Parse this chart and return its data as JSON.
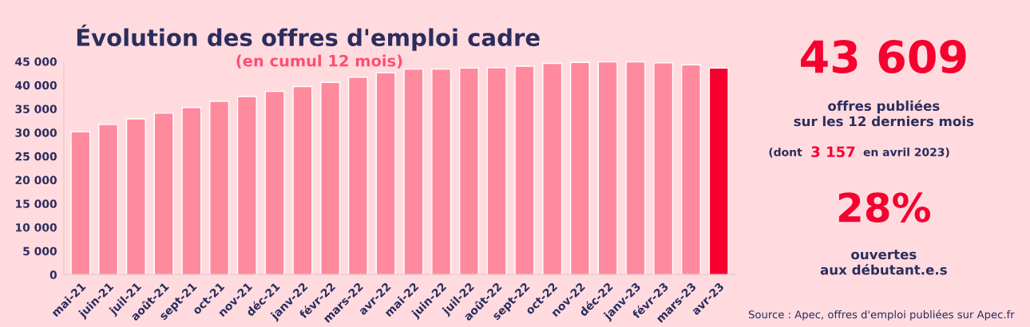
{
  "chart_data": {
    "type": "bar",
    "title": "Évolution des offres d'emploi cadre",
    "subtitle": "(en cumul 12 mois)",
    "categories": [
      "mai-21",
      "juin-21",
      "juil-21",
      "août-21",
      "sept-21",
      "oct-21",
      "nov-21",
      "déc-21",
      "janv-22",
      "févr-22",
      "mars-22",
      "avr-22",
      "mai-22",
      "juin-22",
      "juil-22",
      "août-22",
      "sept-22",
      "oct-22",
      "nov-22",
      "déc-22",
      "janv-23",
      "févr-23",
      "mars-23",
      "avr-23"
    ],
    "values": [
      30200,
      31700,
      32900,
      34100,
      35300,
      36600,
      37600,
      38700,
      39700,
      40600,
      41700,
      42600,
      43400,
      43400,
      43600,
      43700,
      44000,
      44600,
      44800,
      44900,
      44900,
      44700,
      44300,
      43609
    ],
    "colors": [
      "#ff8a9e",
      "#ff8a9e",
      "#ff8a9e",
      "#ff8a9e",
      "#ff8a9e",
      "#ff8a9e",
      "#ff8a9e",
      "#ff8a9e",
      "#ff8a9e",
      "#ff8a9e",
      "#ff8a9e",
      "#ff8a9e",
      "#ff8a9e",
      "#ff8a9e",
      "#ff8a9e",
      "#ff8a9e",
      "#ff8a9e",
      "#ff8a9e",
      "#ff8a9e",
      "#ff8a9e",
      "#ff8a9e",
      "#ff8a9e",
      "#ff8a9e",
      "#f5002f"
    ],
    "ylim": [
      0,
      45000
    ],
    "yticks": [
      {
        "value": 0,
        "label": "0"
      },
      {
        "value": 5000,
        "label": "5 000"
      },
      {
        "value": 10000,
        "label": "10 000"
      },
      {
        "value": 15000,
        "label": "15 000"
      },
      {
        "value": 20000,
        "label": "20 000"
      },
      {
        "value": 25000,
        "label": "25 000"
      },
      {
        "value": 30000,
        "label": "30 000"
      },
      {
        "value": 35000,
        "label": "35 000"
      },
      {
        "value": 40000,
        "label": "40 000"
      },
      {
        "value": 45000,
        "label": "45 000"
      }
    ],
    "grid": false,
    "legend": false,
    "annotations": [
      "43 609",
      "offres publiées\nsur les 12 derniers mois",
      "(dont",
      "3 157",
      "en avril 2023)",
      "28%",
      "ouvertes\naux débutant.e.s",
      "Source : Apec, offres d'emploi publiées sur Apec.fr"
    ]
  }
}
